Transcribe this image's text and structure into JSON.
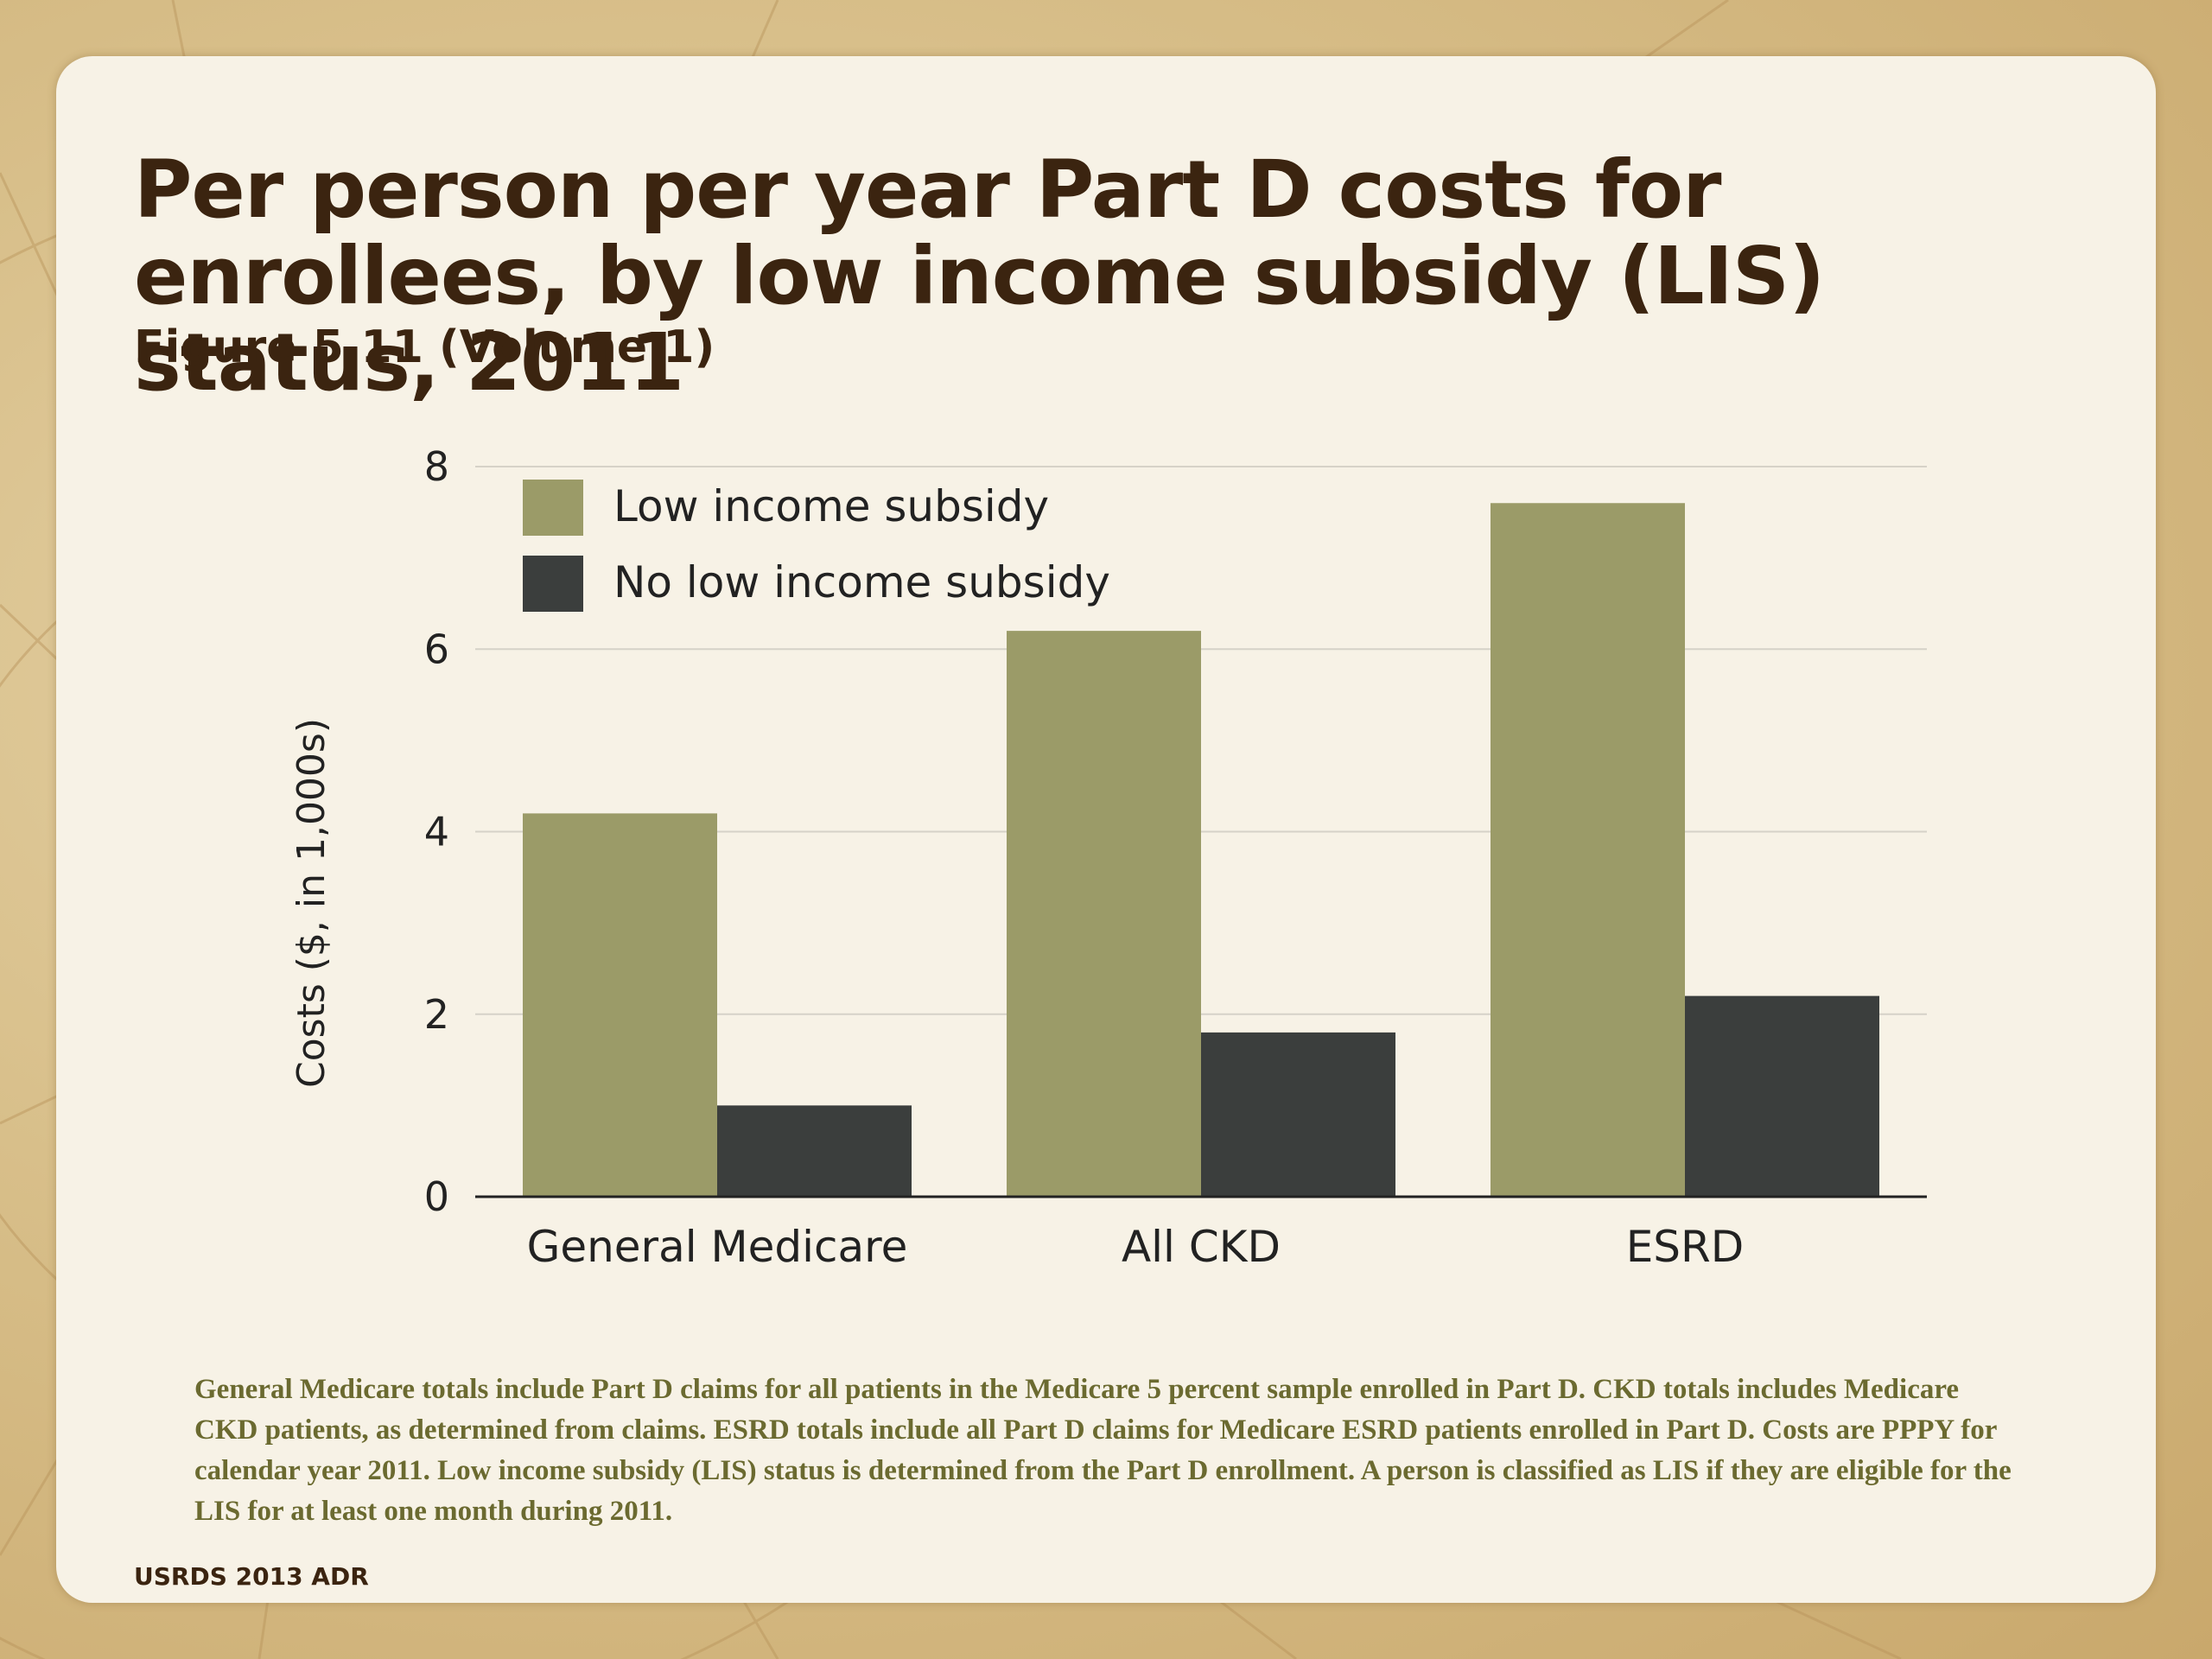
{
  "slide": {
    "title": "Per person per year Part D costs for enrollees, by low income subsidy (LIS) status, 2011",
    "subtitle": "Figure 5.11 (Volume 1)",
    "footnote": "General Medicare totals include Part D claims for all patients in the Medicare 5 percent sample enrolled in Part D. CKD totals includes Medicare CKD patients, as determined from claims. ESRD totals include all Part D claims for Medicare ESRD patients enrolled in Part D. Costs are PPPY for calendar year 2011. Low income subsidy (LIS) status is determined from the Part D enrollment. A person is classified as LIS if they are eligible for the LIS for at least one month during 2011.",
    "source": "USRDS 2013 ADR"
  },
  "colors": {
    "lis": "#9b9b68",
    "no_lis": "#3b3e3d",
    "grid": "#d6d2c8",
    "axis": "#222222",
    "text": "#222222"
  },
  "chart_data": {
    "type": "bar",
    "categories": [
      "General Medicare",
      "All CKD",
      "ESRD"
    ],
    "series": [
      {
        "name": "Low income subsidy",
        "values": [
          4.2,
          6.2,
          7.6
        ]
      },
      {
        "name": "No low income subsidy",
        "values": [
          1.0,
          1.8,
          2.2
        ]
      }
    ],
    "ylabel": "Costs ($, in 1,000s)",
    "xlabel": "",
    "ylim": [
      0,
      8
    ],
    "yticks": [
      "0",
      "2",
      "4",
      "6",
      "8"
    ],
    "grid": true,
    "legend": "top-left"
  }
}
